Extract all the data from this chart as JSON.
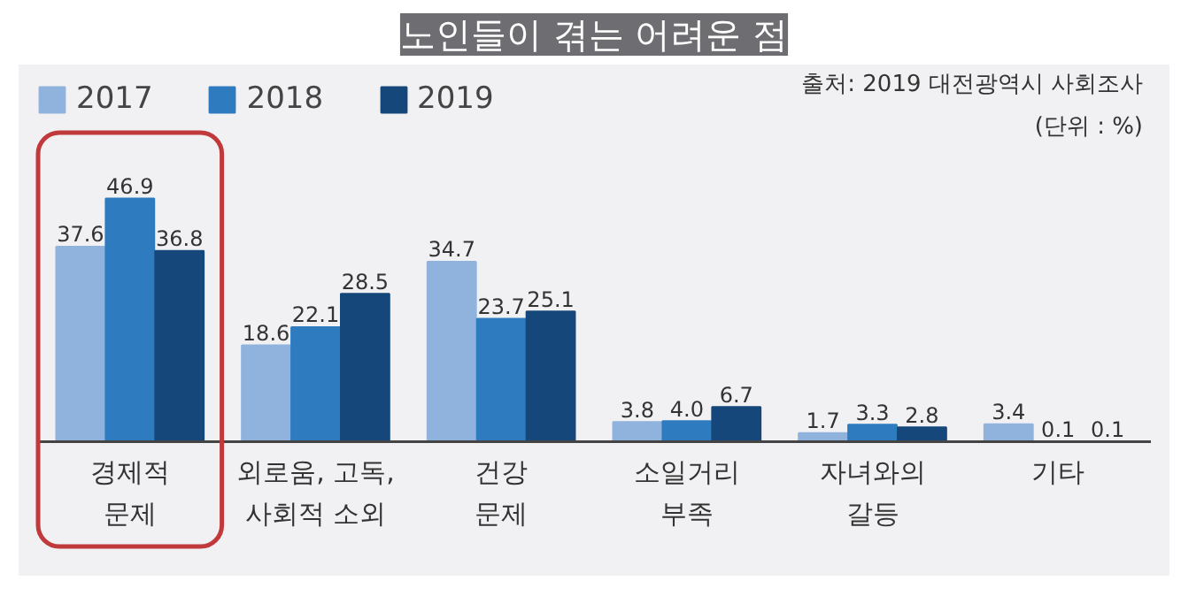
{
  "chart_data": {
    "type": "bar",
    "title": "노인들이 겪는 어려운 점",
    "annotations": [
      "출처: 2019 대전광역시 사회조사",
      "(단위 : %)"
    ],
    "categories": [
      "경제적\n문제",
      "외로움, 고독,\n사회적 소외",
      "건강\n문제",
      "소일거리\n부족",
      "자녀와의\n갈등",
      "기타"
    ],
    "series": [
      {
        "name": "2017",
        "color": "#8fb3dc",
        "values": [
          37.6,
          18.6,
          34.7,
          3.8,
          1.7,
          3.4
        ],
        "value_labels": [
          "37.6",
          "18.6",
          "34.7",
          "3.8",
          "1.7",
          "3.4"
        ]
      },
      {
        "name": "2018",
        "color": "#2f7bc0",
        "values": [
          46.9,
          22.1,
          23.7,
          4.0,
          3.3,
          0.1
        ],
        "value_labels": [
          "46.9",
          "22.1",
          "23.7",
          "4.0",
          "3.3",
          "0.1"
        ]
      },
      {
        "name": "2019",
        "color": "#15477a",
        "values": [
          36.8,
          28.5,
          25.1,
          6.7,
          2.8,
          0.1
        ],
        "value_labels": [
          "36.8",
          "28.5",
          "25.1",
          "6.7",
          "2.8",
          "0.1"
        ]
      }
    ],
    "legend": "top left",
    "grid": false
  }
}
